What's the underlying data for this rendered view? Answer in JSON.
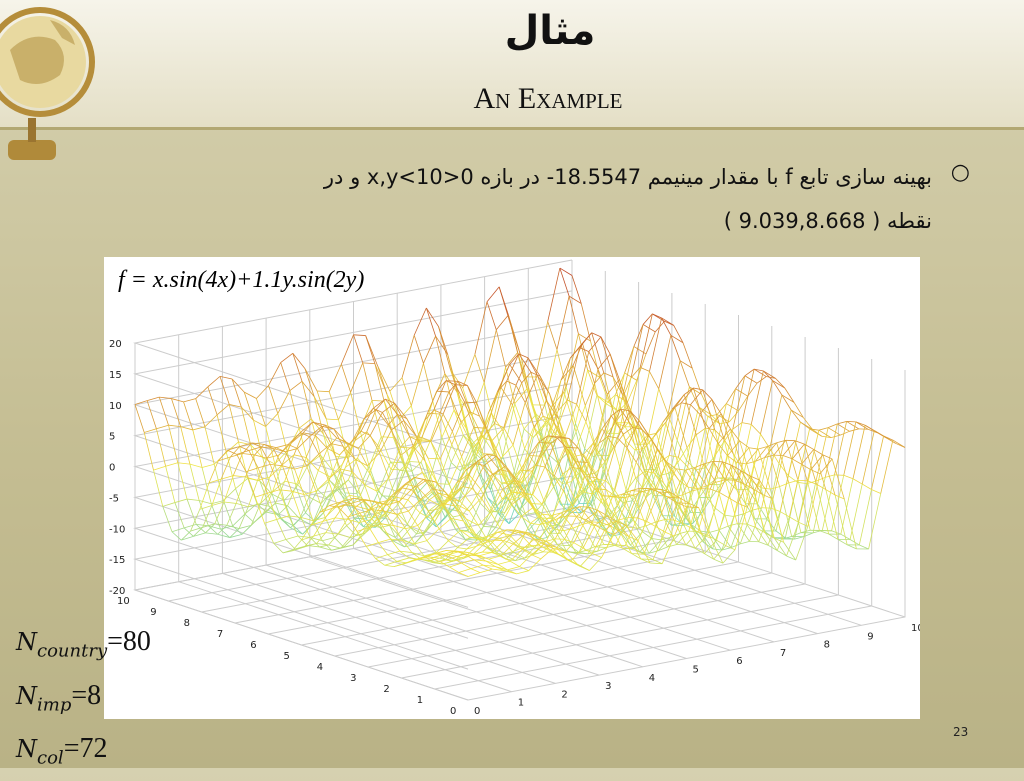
{
  "header": {
    "title": "مثال",
    "subtitle": "An Example"
  },
  "bullet": {
    "lines": [
      "بهینه سازی تابع f با مقدار مینیمم 18.5547- در بازه 0<x,y<10 و در",
      "نقطه ( 9.039,8.668 )"
    ]
  },
  "figure": {
    "formula": "f = x.sin(4x)+1.1y.sin(2y)",
    "z_ticks": [
      20,
      15,
      10,
      5,
      0,
      -5,
      -10,
      -15,
      -20
    ],
    "y_ticks": [
      10,
      9,
      8,
      7,
      6,
      5,
      4,
      3,
      2,
      1,
      0
    ],
    "x_ticks": [
      0,
      1,
      2,
      3,
      4,
      5,
      6,
      7,
      8,
      9,
      10
    ]
  },
  "parameters": [
    {
      "name": "N",
      "subscript": "country",
      "value": "=80"
    },
    {
      "name": "N",
      "subscript": "imp",
      "value": "=8"
    },
    {
      "name": "N",
      "subscript": "col",
      "value": "=72"
    }
  ],
  "page_number": "23"
}
